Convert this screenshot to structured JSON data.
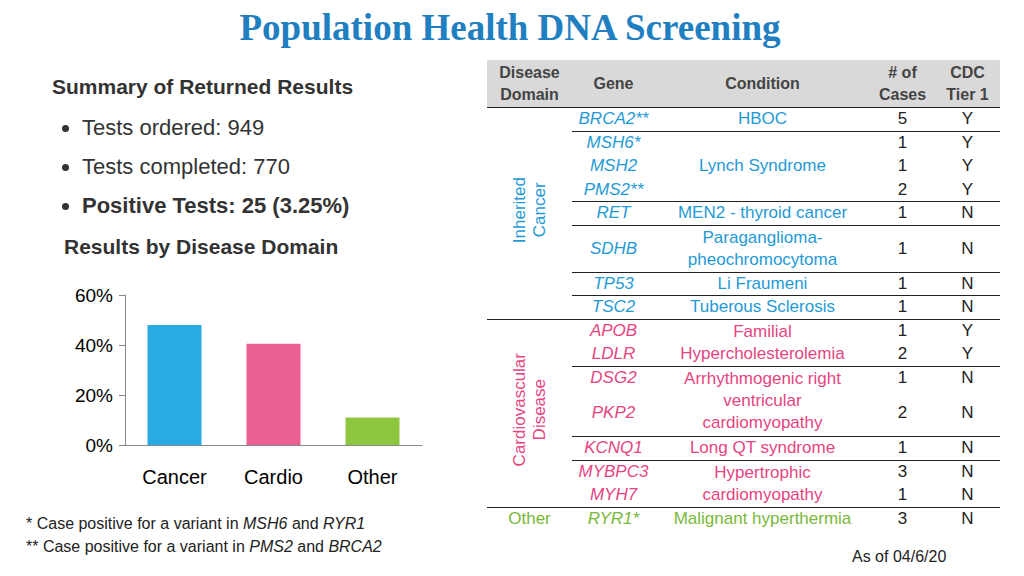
{
  "title": "Population Health DNA Screening",
  "summary": {
    "heading": "Summary of Returned Results",
    "items": [
      {
        "text": "Tests ordered: 949",
        "bold": false
      },
      {
        "text": "Tests completed: 770",
        "bold": false
      },
      {
        "text": "Positive Tests: 25 (3.25%)",
        "bold": true
      }
    ]
  },
  "chart_data": {
    "type": "bar",
    "title": "Results by Disease Domain",
    "categories": [
      "Cancer",
      "Cardio",
      "Other"
    ],
    "values": [
      48,
      40.5,
      11
    ],
    "colors": [
      "#29abe2",
      "#ec5f92",
      "#8dc63f"
    ],
    "ylim": [
      0,
      60
    ],
    "yticks": [
      {
        "value": 0,
        "label": "0%"
      },
      {
        "value": 20,
        "label": "20%"
      },
      {
        "value": 40,
        "label": "40%"
      },
      {
        "value": 60,
        "label": "60%"
      }
    ],
    "grid": false
  },
  "table": {
    "header": [
      [
        "Disease",
        "Domain"
      ],
      [
        "Gene"
      ],
      [
        "Condition"
      ],
      [
        "# of",
        "Cases"
      ],
      [
        "CDC",
        "Tier 1"
      ]
    ],
    "groups": [
      {
        "domain": [
          "Inherited",
          "Cancer"
        ],
        "color": "#1f9ad6",
        "conditions": [
          {
            "lines": [
              "HBOC"
            ],
            "genes": [
              {
                "gene": "BRCA2**",
                "cases": 5,
                "tier1": "Y"
              }
            ]
          },
          {
            "lines": [
              "Lynch Syndrome"
            ],
            "genes": [
              {
                "gene": "MSH6*",
                "cases": 1,
                "tier1": "Y"
              },
              {
                "gene": "MSH2",
                "cases": 1,
                "tier1": "Y"
              },
              {
                "gene": "PMS2**",
                "cases": 2,
                "tier1": "Y"
              }
            ]
          },
          {
            "lines": [
              "MEN2 - thyroid cancer"
            ],
            "genes": [
              {
                "gene": "RET",
                "cases": 1,
                "tier1": "N"
              }
            ]
          },
          {
            "lines": [
              "Paraganglioma-",
              "pheochromocytoma"
            ],
            "genes": [
              {
                "gene": "SDHB",
                "cases": 1,
                "tier1": "N"
              }
            ]
          },
          {
            "lines": [
              "Li Fraumeni"
            ],
            "genes": [
              {
                "gene": "TP53",
                "cases": 1,
                "tier1": "N"
              }
            ]
          },
          {
            "lines": [
              "Tuberous Sclerosis"
            ],
            "genes": [
              {
                "gene": "TSC2",
                "cases": 1,
                "tier1": "N"
              }
            ]
          }
        ]
      },
      {
        "domain": [
          "Cardiovascular",
          "Disease"
        ],
        "color": "#e6457f",
        "conditions": [
          {
            "lines": [
              "Familial",
              "Hypercholesterolemia"
            ],
            "genes": [
              {
                "gene": "APOB",
                "cases": 1,
                "tier1": "Y"
              },
              {
                "gene": "LDLR",
                "cases": 2,
                "tier1": "Y"
              }
            ]
          },
          {
            "lines": [
              "Arrhythmogenic right",
              "ventricular",
              "cardiomyopathy"
            ],
            "genes": [
              {
                "gene": "DSG2",
                "cases": 1,
                "tier1": "N"
              },
              {
                "gene": "PKP2",
                "cases": 2,
                "tier1": "N"
              }
            ]
          },
          {
            "lines": [
              "Long QT syndrome"
            ],
            "genes": [
              {
                "gene": "KCNQ1",
                "cases": 1,
                "tier1": "N"
              }
            ]
          },
          {
            "lines": [
              "Hypertrophic",
              "cardiomyopathy"
            ],
            "genes": [
              {
                "gene": "MYBPC3",
                "cases": 3,
                "tier1": "N"
              },
              {
                "gene": "MYH7",
                "cases": 1,
                "tier1": "N"
              }
            ]
          }
        ]
      },
      {
        "domain": [
          "Other"
        ],
        "color": "#79b83a",
        "conditions": [
          {
            "lines": [
              "Malignant hyperthermia"
            ],
            "genes": [
              {
                "gene": "RYR1*",
                "cases": 3,
                "tier1": "N"
              }
            ]
          }
        ]
      }
    ]
  },
  "footnotes": [
    "* Case positive for a variant in MSH6 and RYR1",
    "** Case positive for a variant in PMS2 and BRCA2"
  ],
  "as_of": "As of 04/6/20"
}
